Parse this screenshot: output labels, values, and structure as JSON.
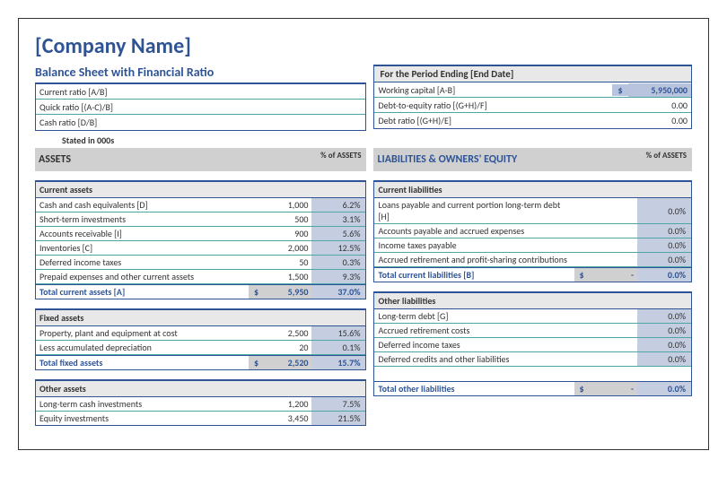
{
  "company_name": "[Company Name]",
  "subtitle": "Balance Sheet with Financial Ratio",
  "period_header": "For the Period Ending [End Date]",
  "ratios_left": [
    {
      "label": "Current ratio [A/B]"
    },
    {
      "label": "Quick ratio [(A-C)/B]"
    },
    {
      "label": "Cash ratio [D/B]"
    }
  ],
  "summary_right": [
    {
      "label": "Working capital [A-B]",
      "currency": "$",
      "value": "5,950,000"
    },
    {
      "label": "Debt-to-equity ratio [(G+H)/F]",
      "value2": "0.00"
    },
    {
      "label": "Debt ratio [(G+H)/E]",
      "value2": "0.00"
    }
  ],
  "stated": "Stated in 000s",
  "headers": {
    "assets": "ASSETS",
    "pct_assets": "% of ASSETS",
    "liab": "LIABILITIES & OWNERS' EQUITY",
    "pct_assets_r": "% of ASSETS"
  },
  "left_sections": [
    {
      "title": "Current assets",
      "rows": [
        {
          "label": "Cash and cash equivalents [D]",
          "value": "1,000",
          "pct": "6.2%"
        },
        {
          "label": "Short-term investments",
          "value": "500",
          "pct": "3.1%"
        },
        {
          "label": "Accounts receivable [I]",
          "value": "900",
          "pct": "5.6%"
        },
        {
          "label": "Inventories [C]",
          "value": "2,000",
          "pct": "12.5%"
        },
        {
          "label": "Deferred income taxes",
          "value": "50",
          "pct": "0.3%"
        },
        {
          "label": "Prepaid expenses and other current assets",
          "value": "1,500",
          "pct": "9.3%"
        }
      ],
      "total": {
        "label": "Total current assets [A]",
        "currency": "$",
        "value": "5,950",
        "pct": "37.0%"
      }
    },
    {
      "title": "Fixed assets",
      "rows": [
        {
          "label": "Property, plant and equipment at cost",
          "value": "2,500",
          "pct": "15.6%"
        },
        {
          "label": "Less accumulated depreciation",
          "value": "20",
          "pct": "0.1%"
        }
      ],
      "total": {
        "label": "Total fixed assets",
        "currency": "$",
        "value": "2,520",
        "pct": "15.7%"
      }
    },
    {
      "title": "Other assets",
      "rows": [
        {
          "label": "Long-term cash investments",
          "value": "1,200",
          "pct": "7.5%"
        },
        {
          "label": "Equity investments",
          "value": "3,450",
          "pct": "21.5%"
        }
      ]
    }
  ],
  "right_sections": [
    {
      "title": "Current liabilities",
      "rows": [
        {
          "label": "Loans payable and current portion long-term debt [H]",
          "pct": "0.0%"
        },
        {
          "label": "Accounts payable and accrued expenses",
          "pct": "0.0%"
        },
        {
          "label": "Income taxes payable",
          "pct": "0.0%"
        },
        {
          "label": "Accrued retirement and profit-sharing contributions",
          "pct": "0.0%"
        }
      ],
      "total": {
        "label": "Total current liabilities [B]",
        "currency": "$",
        "value": "-",
        "pct": "0.0%"
      }
    },
    {
      "title": "Other liabilities",
      "rows": [
        {
          "label": "Long-term debt [G]",
          "pct": "0.0%"
        },
        {
          "label": "Accrued retirement costs",
          "pct": "0.0%"
        },
        {
          "label": "Deferred income taxes",
          "pct": "0.0%"
        },
        {
          "label": "Deferred credits and other liabilities",
          "pct": "0.0%"
        }
      ],
      "total": {
        "label": "Total other liabilities",
        "currency": "$",
        "value": "-",
        "pct": "0.0%"
      },
      "total_gap": true
    }
  ]
}
